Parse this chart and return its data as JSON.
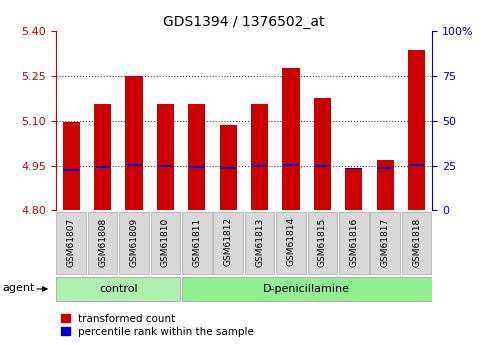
{
  "title": "GDS1394 / 1376502_at",
  "samples": [
    "GSM61807",
    "GSM61808",
    "GSM61809",
    "GSM61810",
    "GSM61811",
    "GSM61812",
    "GSM61813",
    "GSM61814",
    "GSM61815",
    "GSM61816",
    "GSM61817",
    "GSM61818"
  ],
  "red_values": [
    5.095,
    5.155,
    5.248,
    5.155,
    5.155,
    5.085,
    5.155,
    5.275,
    5.175,
    4.942,
    4.97,
    5.335
  ],
  "blue_values": [
    4.934,
    4.944,
    4.952,
    4.948,
    4.945,
    4.943,
    4.948,
    4.952,
    4.949,
    4.94,
    4.942,
    4.952
  ],
  "ylim_left": [
    4.8,
    5.4
  ],
  "ylim_right": [
    0,
    100
  ],
  "yticks_left": [
    4.8,
    4.95,
    5.1,
    5.25,
    5.4
  ],
  "yticks_right": [
    0,
    25,
    50,
    75,
    100
  ],
  "bar_bottom": 4.8,
  "bar_width": 0.55,
  "ctrl_count": 4,
  "dpen_count": 8,
  "ctrl_color": "#aef0ae",
  "dpen_color": "#90EE90",
  "sample_box_color": "#d8d8d8",
  "agent_label": "agent",
  "legend_red": "transformed count",
  "legend_blue": "percentile rank within the sample",
  "red_color": "#cc0000",
  "blue_color": "#0000cc",
  "left_axis_color": "#cc0000",
  "right_axis_color": "#0000cc",
  "gridline_color": "#444444",
  "gridline_style": "dotted",
  "title_fontsize": 10,
  "tick_label_fontsize": 8,
  "sample_fontsize": 6.5,
  "group_fontsize": 8,
  "legend_fontsize": 7.5
}
